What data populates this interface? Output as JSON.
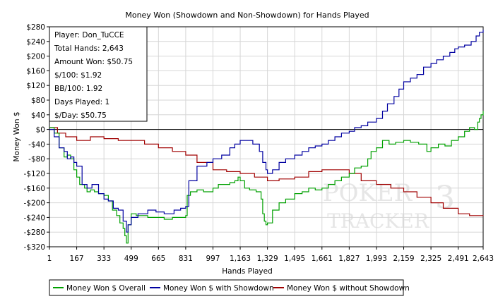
{
  "chart_data": {
    "type": "line",
    "title": "Money Won (Showdown and Non-Showdown) for Hands Played",
    "xlabel": "Hands Played",
    "ylabel": "Money Won $",
    "xlim": [
      1,
      2643
    ],
    "ylim": [
      -320,
      280
    ],
    "x_ticks": [
      1,
      167,
      333,
      499,
      665,
      831,
      997,
      1163,
      1329,
      1495,
      1661,
      1827,
      1993,
      2159,
      2325,
      2491,
      2643
    ],
    "x_tick_labels": [
      "1",
      "167",
      "333",
      "499",
      "665",
      "831",
      "997",
      "1,163",
      "1,329",
      "1,495",
      "1,661",
      "1,827",
      "1,993",
      "2,159",
      "2,325",
      "2,491",
      "2,643"
    ],
    "y_ticks": [
      280,
      240,
      200,
      160,
      120,
      80,
      40,
      0,
      -40,
      -80,
      -120,
      -160,
      -200,
      -240,
      -280,
      -320
    ],
    "y_tick_labels": [
      "$280",
      "$240",
      "$200",
      "$160",
      "$120",
      "$80",
      "$40",
      "$0",
      "-$40",
      "-$80",
      "-$120",
      "-$160",
      "-$200",
      "-$240",
      "-$280",
      "-$320"
    ],
    "grid": true,
    "legend_position": "bottom",
    "stats_box": [
      "Player: Don_TuCCE",
      "Total Hands: 2,643",
      "Amount Won: $50.75",
      "$/100: $1.92",
      "BB/100: 1.92",
      "Days Played: 1",
      "$/Day: $50.75"
    ],
    "watermark": {
      "line1": "POKER",
      "line2": "TRACKER",
      "digit": "3"
    },
    "series": [
      {
        "name": "Money Won $ Overall",
        "color": "#00a000",
        "x": [
          1,
          30,
          60,
          90,
          110,
          130,
          150,
          167,
          185,
          200,
          215,
          230,
          250,
          275,
          300,
          333,
          360,
          385,
          410,
          430,
          450,
          460,
          470,
          480,
          499,
          530,
          560,
          600,
          640,
          665,
          700,
          750,
          800,
          831,
          840,
          860,
          900,
          940,
          997,
          1030,
          1060,
          1100,
          1130,
          1150,
          1163,
          1190,
          1220,
          1260,
          1290,
          1300,
          1310,
          1320,
          1329,
          1360,
          1400,
          1440,
          1495,
          1540,
          1580,
          1620,
          1661,
          1700,
          1740,
          1780,
          1827,
          1860,
          1900,
          1940,
          1960,
          1993,
          2030,
          2070,
          2110,
          2159,
          2200,
          2250,
          2300,
          2325,
          2370,
          2410,
          2450,
          2491,
          2530,
          2560,
          2590,
          2610,
          2620,
          2630,
          2643
        ],
        "y": [
          5,
          -10,
          -50,
          -75,
          -70,
          -80,
          -110,
          -130,
          -150,
          -150,
          -160,
          -170,
          -165,
          -170,
          -175,
          -180,
          -195,
          -220,
          -235,
          -255,
          -270,
          -290,
          -310,
          -260,
          -230,
          -235,
          -235,
          -240,
          -240,
          -240,
          -245,
          -240,
          -240,
          -235,
          -180,
          -170,
          -165,
          -170,
          -160,
          -150,
          -150,
          -145,
          -140,
          -130,
          -140,
          -160,
          -165,
          -170,
          -190,
          -230,
          -250,
          -260,
          -255,
          -220,
          -200,
          -190,
          -175,
          -170,
          -160,
          -165,
          -160,
          -150,
          -140,
          -130,
          -120,
          -105,
          -100,
          -80,
          -60,
          -50,
          -30,
          -40,
          -35,
          -30,
          -35,
          -40,
          -60,
          -50,
          -40,
          -45,
          -30,
          -20,
          -5,
          5,
          0,
          20,
          30,
          40,
          50.75
        ]
      },
      {
        "name": "Money Won $ with Showdown",
        "color": "#0000a0",
        "x": [
          1,
          30,
          60,
          90,
          110,
          130,
          150,
          167,
          200,
          230,
          260,
          300,
          333,
          360,
          390,
          420,
          450,
          470,
          480,
          499,
          540,
          600,
          650,
          700,
          760,
          800,
          831,
          850,
          900,
          960,
          997,
          1050,
          1100,
          1130,
          1163,
          1200,
          1240,
          1280,
          1300,
          1320,
          1329,
          1360,
          1400,
          1440,
          1495,
          1540,
          1580,
          1620,
          1661,
          1700,
          1740,
          1780,
          1827,
          1860,
          1900,
          1940,
          1993,
          2030,
          2060,
          2100,
          2130,
          2159,
          2200,
          2240,
          2280,
          2325,
          2360,
          2400,
          2440,
          2470,
          2491,
          2530,
          2570,
          2600,
          2620,
          2643
        ],
        "y": [
          0,
          -20,
          -50,
          -60,
          -80,
          -75,
          -90,
          -100,
          -150,
          -160,
          -150,
          -175,
          -190,
          -195,
          -215,
          -220,
          -250,
          -280,
          -260,
          -240,
          -230,
          -220,
          -225,
          -230,
          -220,
          -215,
          -210,
          -140,
          -100,
          -90,
          -80,
          -70,
          -50,
          -40,
          -30,
          -30,
          -40,
          -60,
          -90,
          -110,
          -120,
          -110,
          -90,
          -80,
          -70,
          -60,
          -50,
          -45,
          -40,
          -30,
          -20,
          -10,
          -5,
          5,
          10,
          20,
          30,
          50,
          70,
          90,
          110,
          130,
          140,
          150,
          170,
          180,
          190,
          200,
          210,
          220,
          225,
          230,
          240,
          255,
          265,
          272
        ]
      },
      {
        "name": "Money Won $ without Showdown",
        "color": "#a00000",
        "x": [
          1,
          50,
          100,
          167,
          250,
          333,
          420,
          499,
          580,
          665,
          750,
          831,
          900,
          997,
          1080,
          1163,
          1250,
          1329,
          1400,
          1495,
          1580,
          1661,
          1740,
          1827,
          1900,
          1993,
          2080,
          2159,
          2240,
          2325,
          2400,
          2491,
          2560,
          2610,
          2643
        ],
        "y": [
          5,
          -10,
          -20,
          -30,
          -20,
          -25,
          -30,
          -30,
          -40,
          -50,
          -60,
          -70,
          -90,
          -110,
          -115,
          -120,
          -130,
          -140,
          -135,
          -130,
          -115,
          -110,
          -110,
          -120,
          -140,
          -150,
          -160,
          -170,
          -185,
          -200,
          -215,
          -230,
          -235,
          -235,
          -236
        ]
      }
    ]
  }
}
